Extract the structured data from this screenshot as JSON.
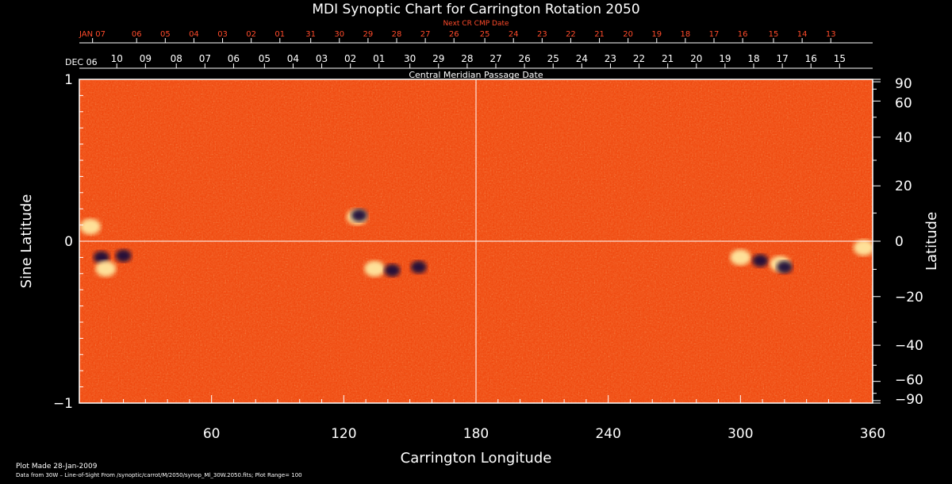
{
  "chart_data": {
    "type": "heatmap",
    "title": "MDI Synoptic Chart for Carrington Rotation 2050",
    "xlabel": "Carrington Longitude",
    "ylabel": "Sine Latitude",
    "ylabel_right": "Latitude",
    "top_axis_title": "Central Meridian Passage Date",
    "top_red_axis_title": "Next CR CMP Date",
    "xlim": [
      0,
      360
    ],
    "ylim": [
      -1,
      1
    ],
    "x_ticks": [
      60,
      120,
      180,
      240,
      300,
      360
    ],
    "x_tick_labels": [
      "60",
      "120",
      "180",
      "240",
      "300",
      "360"
    ],
    "y_ticks": [
      -1,
      0,
      1
    ],
    "y_tick_labels": [
      "−1",
      "0",
      "1"
    ],
    "right_ticks": [
      90,
      60,
      40,
      20,
      0,
      -20,
      -40,
      -60,
      -90
    ],
    "right_tick_labels": [
      "90",
      "60",
      "40",
      "20",
      "0",
      "−20",
      "−40",
      "−60",
      "−90"
    ],
    "cmp_dates": [
      {
        "label": "DEC 06",
        "lon": -4
      },
      {
        "label": "10",
        "lon": 17
      },
      {
        "label": "09",
        "lon": 30
      },
      {
        "label": "08",
        "lon": 44
      },
      {
        "label": "07",
        "lon": 57
      },
      {
        "label": "06",
        "lon": 70
      },
      {
        "label": "05",
        "lon": 84
      },
      {
        "label": "04",
        "lon": 97
      },
      {
        "label": "03",
        "lon": 110
      },
      {
        "label": "02",
        "lon": 123
      },
      {
        "label": "01",
        "lon": 136
      },
      {
        "label": "30",
        "lon": 150
      },
      {
        "label": "29",
        "lon": 163
      },
      {
        "label": "28",
        "lon": 176
      },
      {
        "label": "27",
        "lon": 189
      },
      {
        "label": "26",
        "lon": 202
      },
      {
        "label": "25",
        "lon": 215
      },
      {
        "label": "24",
        "lon": 228
      },
      {
        "label": "23",
        "lon": 241
      },
      {
        "label": "22",
        "lon": 254
      },
      {
        "label": "21",
        "lon": 267
      },
      {
        "label": "20",
        "lon": 280
      },
      {
        "label": "19",
        "lon": 293
      },
      {
        "label": "18",
        "lon": 306
      },
      {
        "label": "17",
        "lon": 319
      },
      {
        "label": "16",
        "lon": 332
      },
      {
        "label": "15",
        "lon": 345
      }
    ],
    "next_cr_dates": [
      {
        "label": "JAN 07",
        "lon": 6
      },
      {
        "label": "06",
        "lon": 26
      },
      {
        "label": "05",
        "lon": 39
      },
      {
        "label": "04",
        "lon": 52
      },
      {
        "label": "03",
        "lon": 65
      },
      {
        "label": "02",
        "lon": 78
      },
      {
        "label": "01",
        "lon": 91
      },
      {
        "label": "31",
        "lon": 105
      },
      {
        "label": "30",
        "lon": 118
      },
      {
        "label": "29",
        "lon": 131
      },
      {
        "label": "28",
        "lon": 144
      },
      {
        "label": "27",
        "lon": 157
      },
      {
        "label": "26",
        "lon": 170
      },
      {
        "label": "25",
        "lon": 184
      },
      {
        "label": "24",
        "lon": 197
      },
      {
        "label": "23",
        "lon": 210
      },
      {
        "label": "22",
        "lon": 223
      },
      {
        "label": "21",
        "lon": 236
      },
      {
        "label": "20",
        "lon": 249
      },
      {
        "label": "19",
        "lon": 262
      },
      {
        "label": "18",
        "lon": 275
      },
      {
        "label": "17",
        "lon": 288
      },
      {
        "label": "16",
        "lon": 301
      },
      {
        "label": "15",
        "lon": 315
      },
      {
        "label": "14",
        "lon": 328
      },
      {
        "label": "13",
        "lon": 341
      }
    ],
    "colormap": [
      "#1a0a3a",
      "#ff4a10",
      "#ffe8a0"
    ],
    "background_color": "#f04a10",
    "active_regions": [
      {
        "lon": 5,
        "sinlat": 0.09,
        "polarity": "positive"
      },
      {
        "lon": 10,
        "sinlat": -0.1,
        "polarity": "negative"
      },
      {
        "lon": 12,
        "sinlat": -0.17,
        "polarity": "positive"
      },
      {
        "lon": 20,
        "sinlat": -0.09,
        "polarity": "negative"
      },
      {
        "lon": 126,
        "sinlat": 0.15,
        "polarity": "positive"
      },
      {
        "lon": 127,
        "sinlat": 0.16,
        "polarity": "negative"
      },
      {
        "lon": 134,
        "sinlat": -0.17,
        "polarity": "positive"
      },
      {
        "lon": 142,
        "sinlat": -0.18,
        "polarity": "negative"
      },
      {
        "lon": 154,
        "sinlat": -0.16,
        "polarity": "negative"
      },
      {
        "lon": 300,
        "sinlat": -0.1,
        "polarity": "positive"
      },
      {
        "lon": 309,
        "sinlat": -0.12,
        "polarity": "negative"
      },
      {
        "lon": 318,
        "sinlat": -0.14,
        "polarity": "positive"
      },
      {
        "lon": 320,
        "sinlat": -0.16,
        "polarity": "negative"
      },
      {
        "lon": 356,
        "sinlat": -0.04,
        "polarity": "positive"
      }
    ],
    "grid": false,
    "crosshair": {
      "lon": 180,
      "sinlat": 0
    },
    "legend": "none"
  },
  "footer": {
    "plot_made": "Plot Made 28-Jan-2009",
    "data_from": "Data from 30W – Line-of-Sight From /synoptic/carrot/M/2050/synop_Ml_30W.2050.fits; Plot Range= 100"
  }
}
